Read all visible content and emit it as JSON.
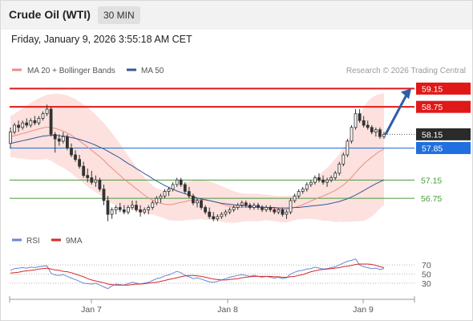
{
  "header": {
    "title": "Crude Oil (WTI)",
    "timeframe": "30 MIN"
  },
  "timestamp": "Friday, January 9, 2026 3:55:18 AM CET",
  "legend": {
    "ma20": {
      "label": "MA 20 + Bollinger Bands",
      "color": "#f08c84"
    },
    "ma50": {
      "label": "MA 50",
      "color": "#34589c"
    },
    "credit": "Research © 2026 Trading Central"
  },
  "rsi_legend": {
    "rsi": {
      "label": "RSI",
      "color": "#6b86d6"
    },
    "ma9": {
      "label": "9MA",
      "color": "#d42a2a"
    }
  },
  "chart_data": [
    {
      "type": "candlestick",
      "title": "",
      "ylim": [
        56.05,
        59.35
      ],
      "x_ticks": [
        "Jan 7",
        "Jan 8",
        "Jan 9"
      ],
      "candles": [
        [
          57.95,
          58.3,
          57.85,
          58.2
        ],
        [
          58.2,
          58.4,
          58.15,
          58.35
        ],
        [
          58.35,
          58.45,
          58.2,
          58.3
        ],
        [
          58.3,
          58.45,
          58.25,
          58.4
        ],
        [
          58.4,
          58.5,
          58.3,
          58.35
        ],
        [
          58.35,
          58.5,
          58.3,
          58.45
        ],
        [
          58.45,
          58.55,
          58.35,
          58.4
        ],
        [
          58.4,
          58.55,
          58.35,
          58.5
        ],
        [
          58.5,
          58.65,
          58.45,
          58.6
        ],
        [
          58.6,
          58.8,
          58.55,
          58.7
        ],
        [
          58.7,
          58.75,
          58.1,
          58.15
        ],
        [
          58.15,
          58.2,
          57.75,
          58.05
        ],
        [
          58.05,
          58.15,
          57.9,
          58.0
        ],
        [
          58.0,
          58.2,
          57.95,
          58.1
        ],
        [
          58.1,
          58.15,
          57.8,
          57.85
        ],
        [
          57.85,
          57.95,
          57.65,
          57.7
        ],
        [
          57.7,
          57.8,
          57.55,
          57.6
        ],
        [
          57.6,
          57.7,
          57.4,
          57.45
        ],
        [
          57.45,
          57.55,
          57.2,
          57.25
        ],
        [
          57.25,
          57.4,
          57.1,
          57.2
        ],
        [
          57.2,
          57.35,
          57.05,
          57.1
        ],
        [
          57.1,
          57.25,
          57.0,
          57.15
        ],
        [
          57.15,
          57.2,
          56.9,
          56.95
        ],
        [
          56.95,
          57.05,
          56.6,
          56.7
        ],
        [
          56.7,
          56.8,
          56.25,
          56.4
        ],
        [
          56.4,
          56.55,
          56.3,
          56.5
        ],
        [
          56.5,
          56.6,
          56.4,
          56.55
        ],
        [
          56.55,
          56.65,
          56.45,
          56.5
        ],
        [
          56.5,
          56.6,
          56.4,
          56.45
        ],
        [
          56.45,
          56.6,
          56.4,
          56.55
        ],
        [
          56.55,
          56.7,
          56.5,
          56.6
        ],
        [
          56.6,
          56.7,
          56.45,
          56.5
        ],
        [
          56.5,
          56.6,
          56.35,
          56.45
        ],
        [
          56.45,
          56.55,
          56.4,
          56.5
        ],
        [
          56.5,
          56.6,
          56.4,
          56.55
        ],
        [
          56.55,
          56.7,
          56.5,
          56.65
        ],
        [
          56.65,
          56.8,
          56.6,
          56.75
        ],
        [
          56.75,
          56.85,
          56.65,
          56.8
        ],
        [
          56.8,
          56.95,
          56.75,
          56.9
        ],
        [
          56.9,
          57.0,
          56.8,
          56.95
        ],
        [
          56.95,
          57.1,
          56.9,
          57.05
        ],
        [
          57.05,
          57.2,
          57.0,
          57.15
        ],
        [
          57.15,
          57.2,
          57.0,
          57.05
        ],
        [
          57.05,
          57.1,
          56.85,
          56.9
        ],
        [
          56.9,
          57.0,
          56.75,
          56.8
        ],
        [
          56.8,
          56.85,
          56.6,
          56.65
        ],
        [
          56.65,
          56.75,
          56.55,
          56.7
        ],
        [
          56.7,
          56.75,
          56.5,
          56.55
        ],
        [
          56.55,
          56.6,
          56.4,
          56.45
        ],
        [
          56.45,
          56.55,
          56.3,
          56.35
        ],
        [
          56.35,
          56.45,
          56.25,
          56.3
        ],
        [
          56.3,
          56.4,
          56.25,
          56.35
        ],
        [
          56.35,
          56.45,
          56.3,
          56.4
        ],
        [
          56.4,
          56.5,
          56.35,
          56.45
        ],
        [
          56.45,
          56.55,
          56.4,
          56.5
        ],
        [
          56.5,
          56.6,
          56.45,
          56.55
        ],
        [
          56.55,
          56.65,
          56.5,
          56.6
        ],
        [
          56.6,
          56.7,
          56.55,
          56.65
        ],
        [
          56.65,
          56.7,
          56.55,
          56.6
        ],
        [
          56.6,
          56.65,
          56.5,
          56.55
        ],
        [
          56.55,
          56.65,
          56.5,
          56.6
        ],
        [
          56.6,
          56.65,
          56.5,
          56.55
        ],
        [
          56.55,
          56.6,
          56.45,
          56.5
        ],
        [
          56.5,
          56.6,
          56.45,
          56.55
        ],
        [
          56.55,
          56.6,
          56.45,
          56.5
        ],
        [
          56.5,
          56.55,
          56.4,
          56.45
        ],
        [
          56.45,
          56.55,
          56.4,
          56.5
        ],
        [
          56.5,
          56.55,
          56.35,
          56.4
        ],
        [
          56.4,
          56.5,
          56.3,
          56.45
        ],
        [
          56.45,
          56.75,
          56.4,
          56.7
        ],
        [
          56.7,
          56.85,
          56.65,
          56.8
        ],
        [
          56.8,
          56.95,
          56.75,
          56.9
        ],
        [
          56.9,
          57.0,
          56.85,
          56.95
        ],
        [
          56.95,
          57.1,
          56.9,
          57.05
        ],
        [
          57.05,
          57.15,
          57.0,
          57.1
        ],
        [
          57.1,
          57.25,
          57.05,
          57.2
        ],
        [
          57.2,
          57.3,
          57.1,
          57.15
        ],
        [
          57.15,
          57.25,
          57.05,
          57.1
        ],
        [
          57.1,
          57.2,
          57.0,
          57.15
        ],
        [
          57.15,
          57.25,
          57.1,
          57.2
        ],
        [
          57.2,
          57.35,
          57.15,
          57.3
        ],
        [
          57.3,
          57.55,
          57.25,
          57.5
        ],
        [
          57.5,
          57.75,
          57.45,
          57.7
        ],
        [
          57.7,
          58.05,
          57.65,
          58.0
        ],
        [
          58.0,
          58.35,
          57.95,
          58.3
        ],
        [
          58.3,
          58.7,
          58.25,
          58.6
        ],
        [
          58.6,
          58.7,
          58.4,
          58.45
        ],
        [
          58.45,
          58.55,
          58.3,
          58.35
        ],
        [
          58.35,
          58.45,
          58.25,
          58.3
        ],
        [
          58.3,
          58.35,
          58.15,
          58.2
        ],
        [
          58.2,
          58.3,
          58.1,
          58.25
        ],
        [
          58.25,
          58.3,
          58.05,
          58.1
        ],
        [
          58.1,
          58.2,
          58.05,
          58.15
        ]
      ],
      "moving_averages": {
        "ma20": [
          58.1,
          58.12,
          58.14,
          58.17,
          58.19,
          58.22,
          58.24,
          58.27,
          58.29,
          58.31,
          58.3,
          58.28,
          58.25,
          58.22,
          58.18,
          58.13,
          58.07,
          58.01,
          57.94,
          57.87,
          57.8,
          57.73,
          57.66,
          57.58,
          57.49,
          57.41,
          57.33,
          57.25,
          57.17,
          57.1,
          57.03,
          56.96,
          56.89,
          56.82,
          56.76,
          56.71,
          56.67,
          56.64,
          56.62,
          56.61,
          56.62,
          56.64,
          56.66,
          56.68,
          56.7,
          56.71,
          56.72,
          56.72,
          56.71,
          56.7,
          56.68,
          56.66,
          56.63,
          56.6,
          56.58,
          56.56,
          56.55,
          56.55,
          56.55,
          56.55,
          56.55,
          56.55,
          56.55,
          56.55,
          56.54,
          56.53,
          56.52,
          56.51,
          56.51,
          56.53,
          56.55,
          56.58,
          56.61,
          56.65,
          56.69,
          56.73,
          56.77,
          56.8,
          56.84,
          56.88,
          56.92,
          56.98,
          57.04,
          57.12,
          57.21,
          57.31,
          57.41,
          57.5,
          57.58,
          57.65,
          57.72,
          57.78,
          57.83
        ],
        "ma50": [
          57.95,
          57.97,
          57.99,
          58.01,
          58.03,
          58.05,
          58.07,
          58.09,
          58.11,
          58.12,
          58.13,
          58.13,
          58.12,
          58.11,
          58.1,
          58.08,
          58.06,
          58.04,
          58.01,
          57.98,
          57.95,
          57.91,
          57.87,
          57.83,
          57.78,
          57.73,
          57.68,
          57.63,
          57.57,
          57.51,
          57.46,
          57.4,
          57.35,
          57.29,
          57.24,
          57.18,
          57.13,
          57.08,
          57.03,
          56.99,
          56.95,
          56.91,
          56.88,
          56.85,
          56.82,
          56.79,
          56.76,
          56.74,
          56.72,
          56.7,
          56.68,
          56.66,
          56.64,
          56.63,
          56.62,
          56.61,
          56.6,
          56.59,
          56.58,
          56.57,
          56.57,
          56.56,
          56.56,
          56.55,
          56.55,
          56.55,
          56.54,
          56.54,
          56.54,
          56.54,
          56.55,
          56.55,
          56.56,
          56.57,
          56.58,
          56.59,
          56.6,
          56.61,
          56.62,
          56.64,
          56.66,
          56.68,
          56.71,
          56.74,
          56.78,
          56.82,
          56.87,
          56.92,
          56.97,
          57.02,
          57.07,
          57.11,
          57.15
        ]
      },
      "bollinger_bands": {
        "upper": [
          58.55,
          58.6,
          58.66,
          58.72,
          58.78,
          58.84,
          58.89,
          58.94,
          58.98,
          59.01,
          59.03,
          59.04,
          59.04,
          59.02,
          59.0,
          58.96,
          58.92,
          58.86,
          58.8,
          58.74,
          58.66,
          58.58,
          58.49,
          58.4,
          58.29,
          58.18,
          58.06,
          57.94,
          57.81,
          57.68,
          57.56,
          57.44,
          57.32,
          57.21,
          57.11,
          57.03,
          56.97,
          56.94,
          56.93,
          56.95,
          56.98,
          57.02,
          57.06,
          57.09,
          57.12,
          57.14,
          57.15,
          57.15,
          57.14,
          57.12,
          57.09,
          57.06,
          57.02,
          56.98,
          56.94,
          56.91,
          56.88,
          56.86,
          56.85,
          56.85,
          56.85,
          56.85,
          56.84,
          56.83,
          56.82,
          56.81,
          56.8,
          56.8,
          56.8,
          56.81,
          56.83,
          56.87,
          56.93,
          57.0,
          57.08,
          57.17,
          57.26,
          57.34,
          57.42,
          57.51,
          57.61,
          57.72,
          57.85,
          58.0,
          58.18,
          58.37,
          58.57,
          58.74,
          58.87,
          58.95,
          59.0,
          59.03,
          59.05
        ],
        "lower": [
          57.65,
          57.64,
          57.62,
          57.62,
          57.6,
          57.6,
          57.59,
          57.6,
          57.6,
          57.61,
          57.57,
          57.52,
          57.46,
          57.42,
          57.36,
          57.3,
          57.22,
          57.16,
          57.08,
          57.0,
          56.94,
          56.88,
          56.83,
          56.76,
          56.69,
          56.64,
          56.6,
          56.56,
          56.53,
          56.52,
          56.5,
          56.48,
          56.46,
          56.43,
          56.41,
          56.39,
          56.37,
          56.34,
          56.31,
          56.27,
          56.26,
          56.26,
          56.26,
          56.27,
          56.28,
          56.28,
          56.29,
          56.29,
          56.28,
          56.28,
          56.27,
          56.26,
          56.24,
          56.22,
          56.22,
          56.21,
          56.22,
          56.24,
          56.25,
          56.25,
          56.25,
          56.25,
          56.26,
          56.27,
          56.26,
          56.25,
          56.24,
          56.22,
          56.22,
          56.25,
          56.27,
          56.29,
          56.29,
          56.3,
          56.3,
          56.29,
          56.28,
          56.26,
          56.26,
          56.25,
          56.23,
          56.24,
          56.23,
          56.24,
          56.24,
          56.25,
          56.25,
          56.26,
          56.29,
          56.35,
          56.44,
          56.53,
          56.61
        ]
      },
      "levels": [
        {
          "value": 59.15,
          "label": "59.15",
          "kind": "resistance",
          "color": "#e01818"
        },
        {
          "value": 58.75,
          "label": "58.75",
          "kind": "resistance",
          "color": "#e01818"
        },
        {
          "value": 58.15,
          "label": "58.15",
          "kind": "last-price",
          "color": "#2a2a2a"
        },
        {
          "value": 57.85,
          "label": "57.85",
          "kind": "pivot",
          "color": "#1f6fe0"
        },
        {
          "value": 57.15,
          "label": "57.15",
          "kind": "support",
          "color": "#4a9a3a"
        },
        {
          "value": 56.75,
          "label": "56.75",
          "kind": "support",
          "color": "#4a9a3a"
        }
      ],
      "projection": {
        "from": 58.15,
        "to": 59.15,
        "direction": "up",
        "color": "#2f5ea8"
      }
    },
    {
      "type": "line",
      "title": "",
      "ylim": [
        0,
        100
      ],
      "y_ticks": [
        "70",
        "50",
        "30"
      ],
      "series": [
        {
          "name": "RSI",
          "values": [
            58,
            62,
            63,
            64,
            63,
            65,
            64,
            66,
            67,
            68,
            52,
            48,
            47,
            49,
            45,
            41,
            38,
            34,
            30,
            29,
            28,
            30,
            26,
            22,
            18,
            24,
            28,
            27,
            26,
            29,
            32,
            30,
            28,
            30,
            32,
            36,
            40,
            42,
            46,
            48,
            52,
            56,
            53,
            47,
            44,
            40,
            42,
            39,
            36,
            33,
            32,
            34,
            37,
            40,
            43,
            45,
            47,
            49,
            47,
            45,
            47,
            45,
            43,
            45,
            43,
            41,
            43,
            40,
            42,
            50,
            54,
            57,
            58,
            61,
            62,
            65,
            63,
            61,
            62,
            64,
            66,
            70,
            74,
            78,
            80,
            83,
            70,
            66,
            64,
            62,
            63,
            60,
            62
          ]
        },
        {
          "name": "9MA",
          "values": [
            52,
            53,
            54,
            56,
            57,
            58,
            59,
            61,
            62,
            63,
            61,
            59,
            58,
            56,
            55,
            53,
            50,
            47,
            44,
            40,
            37,
            35,
            33,
            31,
            28,
            27,
            26,
            26,
            26,
            26,
            27,
            28,
            28,
            29,
            30,
            31,
            32,
            34,
            36,
            38,
            40,
            42,
            44,
            46,
            47,
            47,
            46,
            45,
            43,
            41,
            39,
            38,
            37,
            37,
            38,
            39,
            40,
            42,
            43,
            44,
            45,
            45,
            45,
            45,
            45,
            44,
            44,
            43,
            43,
            44,
            45,
            47,
            49,
            52,
            55,
            57,
            59,
            60,
            61,
            62,
            63,
            64,
            66,
            67,
            69,
            71,
            72,
            72,
            72,
            71,
            69,
            66,
            64
          ]
        }
      ]
    }
  ]
}
